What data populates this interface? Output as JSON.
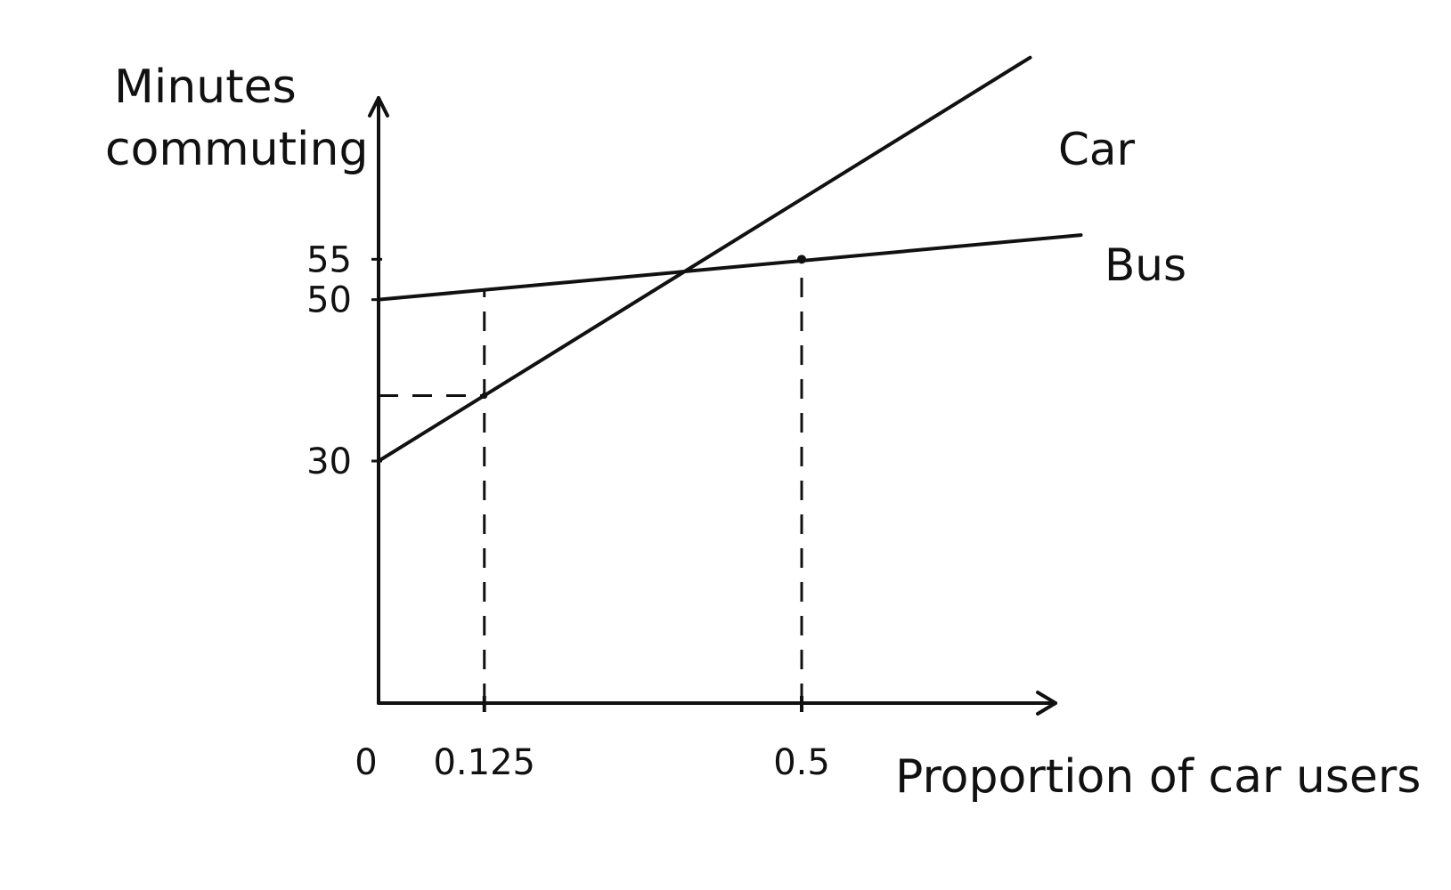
{
  "chart_data": {
    "type": "line",
    "title": "",
    "xlabel": "Proportion of car users",
    "ylabel_lines": [
      "Minutes",
      "commuting"
    ],
    "x_tick_labels": [
      {
        "value": 0,
        "label": "0"
      },
      {
        "value": 0.125,
        "label": "0.125"
      },
      {
        "value": 0.5,
        "label": "0.5"
      }
    ],
    "y_tick_labels": [
      {
        "value": 30,
        "label": "30"
      },
      {
        "value": 50,
        "label": "50"
      },
      {
        "value": 55,
        "label": "55"
      }
    ],
    "xlim": [
      0,
      0.8
    ],
    "ylim": [
      0,
      75
    ],
    "series": [
      {
        "name": "Car",
        "x": [
          0,
          0.77
        ],
        "y": [
          30,
          80
        ]
      },
      {
        "name": "Bus",
        "x": [
          0,
          0.83
        ],
        "y": [
          50,
          58
        ]
      }
    ],
    "reference_lines": [
      {
        "kind": "vertical-dashed",
        "x": 0.125,
        "y_from": 0,
        "y_to": 51.2
      },
      {
        "kind": "horizontal-dashed",
        "y": 38.1,
        "x_from": 0,
        "x_to": 0.125
      },
      {
        "kind": "vertical-dashed",
        "x": 0.5,
        "y_from": 0,
        "y_to": 55
      }
    ],
    "grid": false,
    "legend": "none",
    "colors": {
      "line": "#111111",
      "background": "#ffffff"
    }
  }
}
